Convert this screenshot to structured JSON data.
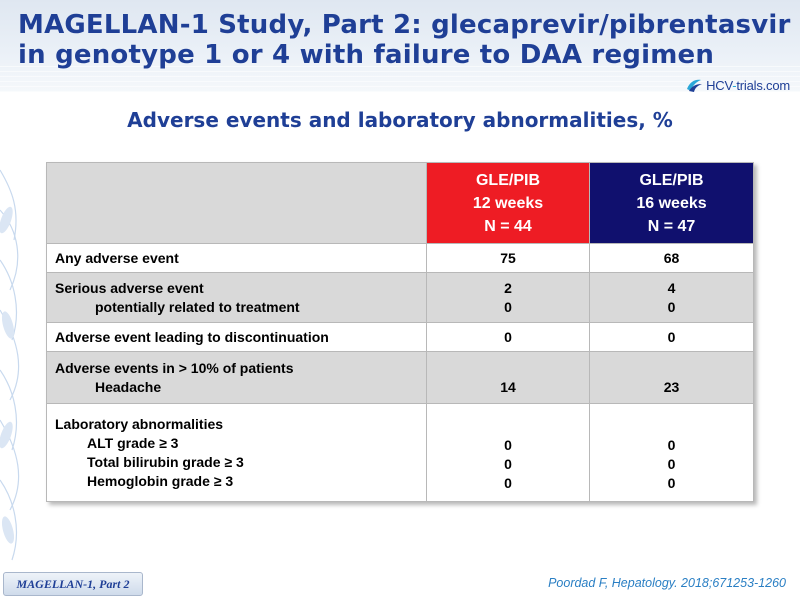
{
  "header": {
    "title_line1": "MAGELLAN-1 Study, Part 2: glecaprevir/pibrentasvir",
    "title_line2": "in genotype 1 or 4 with failure to DAA regimen",
    "logo_text_prefix": "HCV",
    "logo_text_dash": "-",
    "logo_text_suffix": "trials.com"
  },
  "subtitle": "Adverse events and laboratory abnormalities, %",
  "table": {
    "columns": [
      {
        "line1": "GLE/PIB",
        "line2": "12 weeks",
        "line3": "N = 44",
        "color": "#ee1c24"
      },
      {
        "line1": "GLE/PIB",
        "line2": "16 weeks",
        "line3": "N = 47",
        "color": "#10106e"
      }
    ],
    "rows": [
      {
        "label": "Any adverse event",
        "col12": "75",
        "col16": "68"
      },
      {
        "label": "Serious adverse event",
        "sub": "potentially related to treatment",
        "col12": "2",
        "col12_sub": "0",
        "col16": "4",
        "col16_sub": "0"
      },
      {
        "label": "Adverse event leading to discontinuation",
        "col12": "0",
        "col16": "0"
      },
      {
        "label": "Adverse events in > 10% of patients",
        "sub": "Headache",
        "col12": "14",
        "col16": "23"
      },
      {
        "label": "Laboratory abnormalities",
        "subs": [
          "ALT grade ≥ 3",
          "Total bilirubin grade ≥ 3",
          "Hemoglobin grade ≥ 3"
        ],
        "col12": [
          "0",
          "0",
          "0"
        ],
        "col16": [
          "0",
          "0",
          "0"
        ]
      }
    ]
  },
  "footer": {
    "study_tag": "MAGELLAN-1,  Part 2",
    "citation": "Poordad F, Hepatology. 2018;671253-1260"
  }
}
